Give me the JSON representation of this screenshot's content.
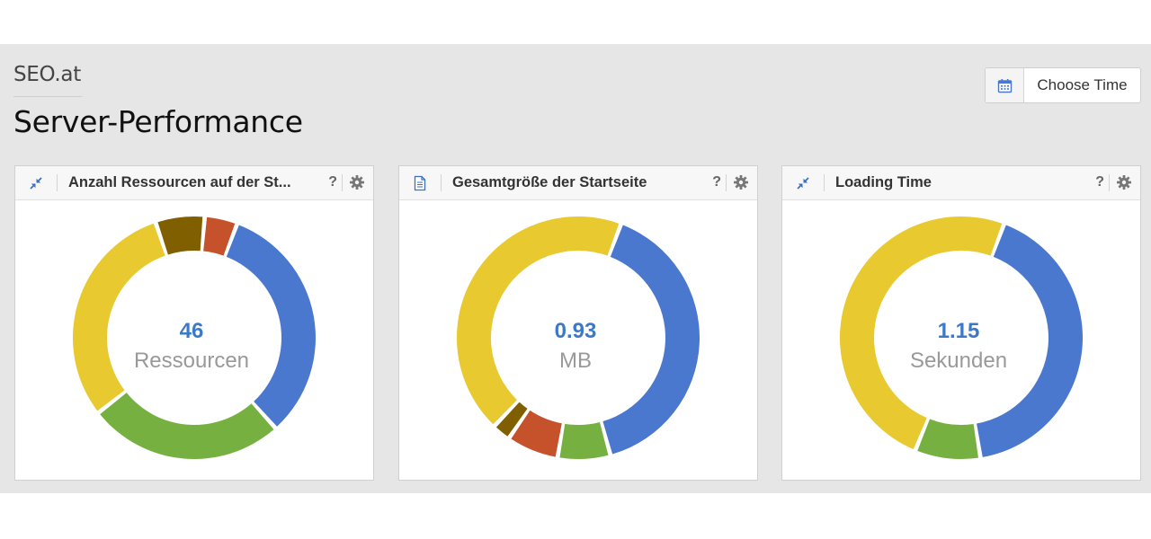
{
  "header": {
    "site_name": "SEO.at",
    "page_title": "Server-Performance",
    "time_button_label": "Choose Time"
  },
  "widgets": [
    {
      "title": "Anzahl Ressourcen auf der St...",
      "icon": "collapse-arrows-icon",
      "help_label": "?",
      "center_value": "46",
      "center_unit": "Ressourcen",
      "chart_data": {
        "type": "pie",
        "values": [
          15,
          12,
          14,
          3,
          2
        ],
        "colors": [
          "#4a78cf",
          "#76b041",
          "#e8c92f",
          "#7f5f00",
          "#c6522c"
        ]
      }
    },
    {
      "title": "Gesamtgröße der Startseite",
      "icon": "document-icon",
      "help_label": "?",
      "center_value": "0.93",
      "center_unit": "MB",
      "chart_data": {
        "type": "pie",
        "values": [
          0.372,
          0.065,
          0.064,
          0.023,
          0.406
        ],
        "colors": [
          "#4a78cf",
          "#76b041",
          "#c6522c",
          "#7f5f00",
          "#e8c92f"
        ]
      }
    },
    {
      "title": "Loading Time",
      "icon": "collapse-arrows-icon",
      "help_label": "?",
      "center_value": "1.15",
      "center_unit": "Sekunden",
      "chart_data": {
        "type": "pie",
        "values": [
          0.48,
          0.1,
          0.57
        ],
        "colors": [
          "#4a78cf",
          "#76b041",
          "#e8c92f"
        ]
      }
    }
  ]
}
